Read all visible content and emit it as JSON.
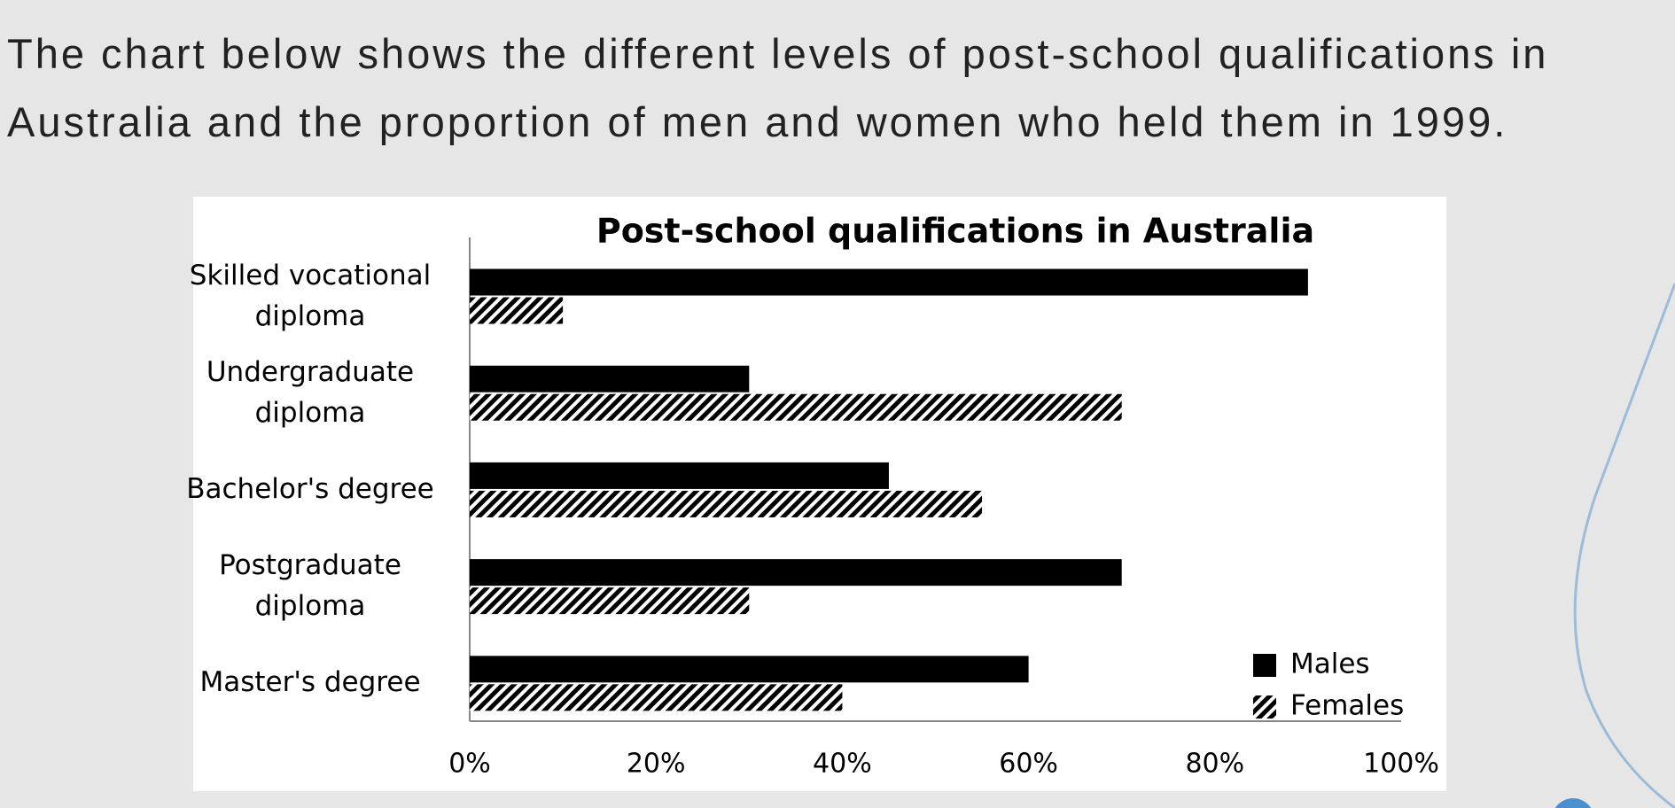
{
  "intro": "The chart below shows the different levels of post-school qualifications in Australia and the proportion of men and women who held them in 1999.",
  "chart_data": {
    "type": "bar",
    "orientation": "horizontal",
    "title": "Post-school qualifications in Australia",
    "categories": [
      "Skilled vocational diploma",
      "Undergraduate diploma",
      "Bachelor's degree",
      "Postgraduate diploma",
      "Master's degree"
    ],
    "series": [
      {
        "name": "Males",
        "color": "#000000",
        "pattern": "solid",
        "values": [
          90,
          30,
          45,
          70,
          60
        ]
      },
      {
        "name": "Females",
        "color": "#000000",
        "pattern": "hatch",
        "values": [
          10,
          70,
          55,
          30,
          40
        ]
      }
    ],
    "xlim": [
      0,
      100
    ],
    "xticks": [
      {
        "value": 0,
        "label": "0%"
      },
      {
        "value": 20,
        "label": "20%"
      },
      {
        "value": 40,
        "label": "40%"
      },
      {
        "value": 60,
        "label": "60%"
      },
      {
        "value": 80,
        "label": "80%"
      },
      {
        "value": 100,
        "label": "100%"
      }
    ],
    "grid": false,
    "legend": "lower right"
  }
}
